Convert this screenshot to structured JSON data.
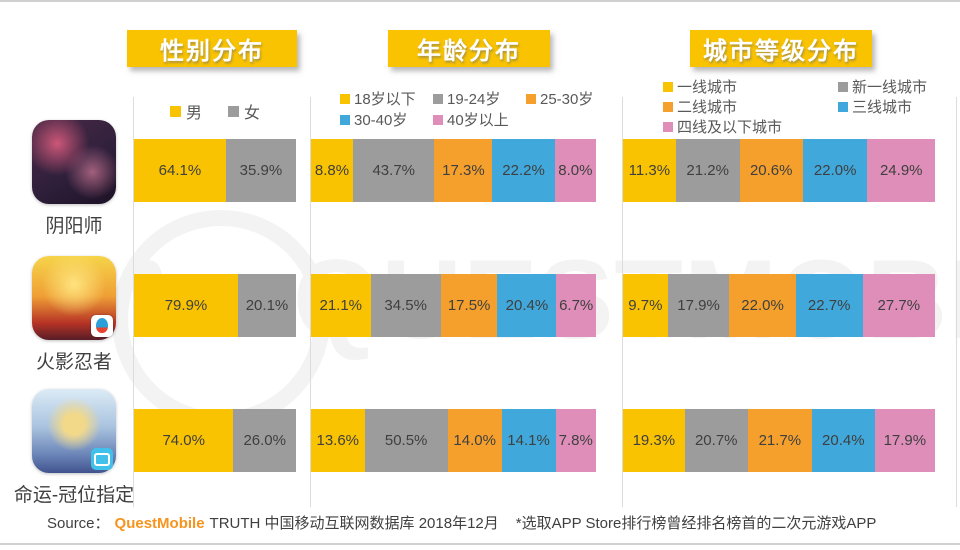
{
  "page": {
    "watermark": "QUESTMOBILE",
    "accent_yellow": "#F9C301",
    "text_dark": "#3F3F3F"
  },
  "source": {
    "prefix": "Source：",
    "brand": "QuestMobile",
    "brand_color": "#F7941E",
    "main": "TRUTH 中国移动互联网数据库 2018年12月",
    "note": "*选取APP Store排行榜曾经排名榜首的二次元游戏APP"
  },
  "apps": [
    {
      "label": "阴阳师",
      "icon": "yinyangshi-app-icon",
      "badge": null
    },
    {
      "label": "火影忍者",
      "icon": "naruto-app-icon",
      "badge": "tencent"
    },
    {
      "label": "命运-冠位指定",
      "icon": "fate-grand-order-app-icon",
      "badge": "bilibili"
    }
  ],
  "chart_data": [
    {
      "type": "bar",
      "stacked": true,
      "orientation": "horizontal",
      "title": "性别分布",
      "unit": "%",
      "xlim": [
        0,
        100
      ],
      "categories": [
        "阴阳师",
        "火影忍者",
        "命运-冠位指定"
      ],
      "series": [
        {
          "name": "男",
          "color": "#F9C301",
          "values": [
            64.1,
            79.9,
            74.0
          ]
        },
        {
          "name": "女",
          "color": "#9C9C9C",
          "values": [
            35.9,
            20.1,
            26.0
          ]
        }
      ]
    },
    {
      "type": "bar",
      "stacked": true,
      "orientation": "horizontal",
      "title": "年龄分布",
      "unit": "%",
      "xlim": [
        0,
        100
      ],
      "categories": [
        "阴阳师",
        "火影忍者",
        "命运-冠位指定"
      ],
      "series": [
        {
          "name": "18岁以下",
          "color": "#F9C301",
          "values": [
            8.8,
            21.1,
            13.6
          ]
        },
        {
          "name": "19-24岁",
          "color": "#9C9C9C",
          "values": [
            43.7,
            34.5,
            50.5
          ]
        },
        {
          "name": "25-30岁",
          "color": "#F5A02D",
          "values": [
            17.3,
            17.5,
            14.0
          ]
        },
        {
          "name": "30-40岁",
          "color": "#41A8DB",
          "values": [
            22.2,
            20.4,
            14.1
          ]
        },
        {
          "name": "40岁以上",
          "color": "#DE8EB9",
          "values": [
            8.0,
            6.7,
            7.8
          ]
        }
      ]
    },
    {
      "type": "bar",
      "stacked": true,
      "orientation": "horizontal",
      "title": "城市等级分布",
      "unit": "%",
      "xlim": [
        0,
        100
      ],
      "categories": [
        "阴阳师",
        "火影忍者",
        "命运-冠位指定"
      ],
      "series": [
        {
          "name": "一线城市",
          "color": "#F9C301",
          "values": [
            11.3,
            9.7,
            19.3
          ]
        },
        {
          "name": "新一线城市",
          "color": "#9C9C9C",
          "values": [
            21.2,
            17.9,
            20.7
          ]
        },
        {
          "name": "二线城市",
          "color": "#F5A02D",
          "values": [
            20.6,
            22.0,
            21.7
          ]
        },
        {
          "name": "三线城市",
          "color": "#41A8DB",
          "values": [
            22.0,
            22.7,
            20.4
          ]
        },
        {
          "name": "四线及以下城市",
          "color": "#DE8EB9",
          "values": [
            24.9,
            27.7,
            17.9
          ]
        }
      ]
    }
  ]
}
